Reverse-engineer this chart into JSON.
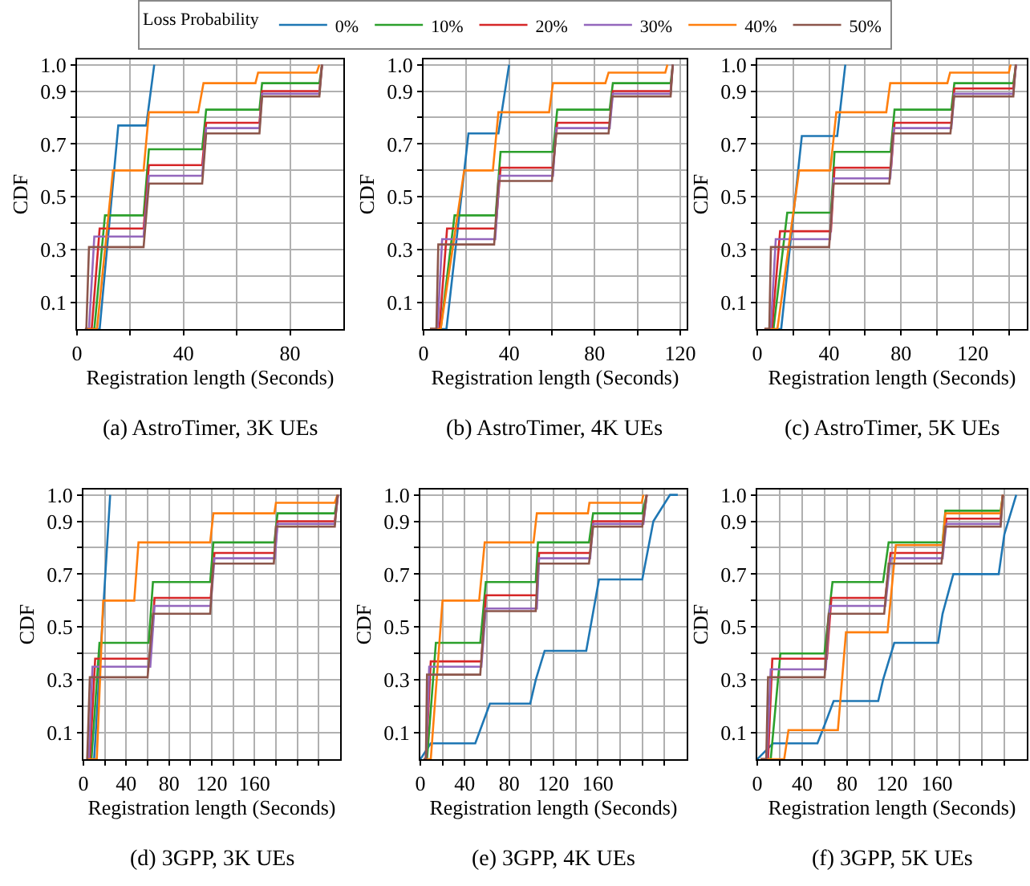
{
  "chart_data": [
    {
      "type": "line",
      "title": "(a) AstroTimer, 3K UEs",
      "xlabel": "Registration length (Seconds)",
      "ylabel": "CDF",
      "legend_title": "Loss Probability",
      "legend": "top",
      "grid": true,
      "xlim": [
        0,
        100
      ],
      "xticks": [
        0,
        {
          "value": 20,
          "label": null
        },
        40,
        {
          "value": 60,
          "label": null
        },
        80
      ],
      "ylim": [
        0,
        1.02
      ],
      "yticks": [
        0.1,
        {
          "value": 0.2,
          "label": null
        },
        0.3,
        {
          "value": 0.4,
          "label": null
        },
        0.5,
        {
          "value": 0.6,
          "label": null
        },
        0.7,
        {
          "value": 0.8,
          "label": null
        },
        0.9,
        {
          "value": 1,
          "label": "1.0"
        }
      ],
      "series": [
        {
          "name": "0%",
          "color": "#1f77b4",
          "x": [
            3,
            8.5,
            15.5,
            26,
            29
          ],
          "values": [
            0,
            0,
            0.77,
            0.77,
            1.0
          ]
        },
        {
          "name": "10%",
          "color": "#2ca02c",
          "x": [
            3,
            6.5,
            10.5,
            25,
            27,
            47,
            48.5,
            68.5,
            69.5,
            91,
            92
          ],
          "values": [
            0,
            0,
            0.43,
            0.43,
            0.68,
            0.68,
            0.83,
            0.83,
            0.93,
            0.93,
            1.0
          ]
        },
        {
          "name": "20%",
          "color": "#d62728",
          "x": [
            3,
            5.5,
            8.5,
            25,
            27,
            47,
            48.5,
            68.5,
            69.5,
            91,
            92
          ],
          "values": [
            0,
            0,
            0.38,
            0.38,
            0.62,
            0.62,
            0.78,
            0.78,
            0.9,
            0.9,
            1.0
          ]
        },
        {
          "name": "30%",
          "color": "#9467bd",
          "x": [
            3,
            4.5,
            6.5,
            25,
            27,
            47,
            48.5,
            68.5,
            69.5,
            91,
            92
          ],
          "values": [
            0,
            0,
            0.35,
            0.35,
            0.58,
            0.58,
            0.76,
            0.76,
            0.89,
            0.89,
            1.0
          ]
        },
        {
          "name": "40%",
          "color": "#ff7f0e",
          "x": [
            3,
            7.5,
            13.5,
            25,
            27,
            45.5,
            47.5,
            67,
            68,
            90,
            91
          ],
          "values": [
            0,
            0,
            0.6,
            0.6,
            0.82,
            0.82,
            0.93,
            0.93,
            0.97,
            0.97,
            1.0
          ]
        },
        {
          "name": "50%",
          "color": "#8c564b",
          "x": [
            3,
            3.5,
            4.5,
            25,
            27,
            47,
            48.5,
            68.5,
            69.5,
            91,
            92
          ],
          "values": [
            0,
            0,
            0.31,
            0.31,
            0.55,
            0.55,
            0.74,
            0.74,
            0.88,
            0.88,
            1.0
          ]
        }
      ]
    },
    {
      "type": "line",
      "title": "(b) AstroTimer, 4K UEs",
      "xlabel": "Registration length (Seconds)",
      "ylabel": "CDF",
      "grid": true,
      "xlim": [
        0,
        123
      ],
      "xticks": [
        0,
        {
          "value": 20,
          "label": null
        },
        40,
        {
          "value": 60,
          "label": null
        },
        80,
        {
          "value": 100,
          "label": null
        },
        120
      ],
      "ylim": [
        0,
        1.02
      ],
      "yticks": [
        0.1,
        {
          "value": 0.2,
          "label": null
        },
        0.3,
        {
          "value": 0.4,
          "label": null
        },
        0.5,
        {
          "value": 0.6,
          "label": null
        },
        0.7,
        {
          "value": 0.8,
          "label": null
        },
        0.9,
        {
          "value": 1,
          "label": "1.0"
        }
      ],
      "series": [
        {
          "color": "#1f77b4",
          "x": [
            3,
            10.7,
            21,
            35,
            40
          ],
          "values": [
            0,
            0,
            0.74,
            0.74,
            1.0
          ]
        },
        {
          "color": "#2ca02c",
          "x": [
            3,
            8,
            14.5,
            33.7,
            36,
            60.5,
            62.5,
            87,
            88.5,
            115.5,
            116.5
          ],
          "values": [
            0,
            0,
            0.43,
            0.43,
            0.67,
            0.67,
            0.83,
            0.83,
            0.93,
            0.93,
            1.0
          ]
        },
        {
          "color": "#d62728",
          "x": [
            3,
            7.4,
            11,
            33.7,
            36,
            60.5,
            62.5,
            87,
            88.5,
            115.5,
            116.5
          ],
          "values": [
            0,
            0,
            0.38,
            0.38,
            0.61,
            0.61,
            0.78,
            0.78,
            0.9,
            0.9,
            1.0
          ]
        },
        {
          "color": "#9467bd",
          "x": [
            3,
            6.5,
            8.7,
            33.5,
            35.5,
            60.5,
            62,
            87,
            88.5,
            115.5,
            116.5
          ],
          "values": [
            0,
            0,
            0.34,
            0.34,
            0.58,
            0.58,
            0.76,
            0.76,
            0.89,
            0.89,
            1.0
          ]
        },
        {
          "color": "#ff7f0e",
          "x": [
            3,
            8,
            19,
            32.4,
            35,
            58.7,
            60.5,
            85,
            86.5,
            113,
            114
          ],
          "values": [
            0,
            0,
            0.6,
            0.6,
            0.82,
            0.82,
            0.93,
            0.93,
            0.97,
            0.97,
            1.0
          ]
        },
        {
          "color": "#8c564b",
          "x": [
            3,
            6,
            6.9,
            33,
            35,
            60,
            62,
            86.5,
            88,
            115.5,
            116.5
          ],
          "values": [
            0,
            0,
            0.32,
            0.32,
            0.56,
            0.56,
            0.74,
            0.74,
            0.88,
            0.88,
            1.0
          ]
        }
      ]
    },
    {
      "type": "line",
      "title": "(c) AstroTimer, 5K UEs",
      "xlabel": "Registration length (Seconds)",
      "ylabel": "CDF",
      "grid": true,
      "xlim": [
        0,
        150
      ],
      "xticks": [
        0,
        {
          "value": 20,
          "label": null
        },
        40,
        {
          "value": 60,
          "label": null
        },
        80,
        {
          "value": 100,
          "label": null
        },
        120,
        {
          "value": 140,
          "label": null
        }
      ],
      "ylim": [
        0,
        1.02
      ],
      "yticks": [
        0.1,
        {
          "value": 0.2,
          "label": null
        },
        0.3,
        {
          "value": 0.4,
          "label": null
        },
        0.5,
        {
          "value": 0.6,
          "label": null
        },
        0.7,
        {
          "value": 0.8,
          "label": null
        },
        0.9,
        {
          "value": 1,
          "label": "1.0"
        }
      ],
      "series": [
        {
          "color": "#1f77b4",
          "x": [
            4,
            13.3,
            24.8,
            44.5,
            49
          ],
          "values": [
            0,
            0,
            0.73,
            0.73,
            1.0
          ]
        },
        {
          "color": "#2ca02c",
          "x": [
            4,
            9,
            16.7,
            41,
            43,
            74.2,
            76.4,
            108,
            109.7,
            142.5,
            144
          ],
          "values": [
            0,
            0,
            0.44,
            0.44,
            0.67,
            0.67,
            0.83,
            0.83,
            0.93,
            0.93,
            1.0
          ]
        },
        {
          "color": "#d62728",
          "x": [
            4,
            8.2,
            12.7,
            41,
            43,
            74.5,
            76.4,
            108,
            109.7,
            142.5,
            144
          ],
          "values": [
            0,
            0,
            0.37,
            0.37,
            0.61,
            0.61,
            0.78,
            0.78,
            0.91,
            0.91,
            1.0
          ]
        },
        {
          "color": "#9467bd",
          "x": [
            4,
            7.5,
            10.3,
            40.5,
            42.5,
            74,
            76,
            108,
            109.7,
            142.5,
            144
          ],
          "values": [
            0,
            0,
            0.34,
            0.34,
            0.57,
            0.57,
            0.76,
            0.76,
            0.89,
            0.89,
            1.0
          ]
        },
        {
          "color": "#ff7f0e",
          "x": [
            4,
            11.2,
            23.3,
            40.6,
            44,
            71.8,
            74,
            105.8,
            107.3,
            140,
            141
          ],
          "values": [
            0,
            0,
            0.6,
            0.6,
            0.82,
            0.82,
            0.93,
            0.93,
            0.97,
            0.97,
            1.0
          ]
        },
        {
          "color": "#8c564b",
          "x": [
            4,
            6.7,
            7.6,
            40,
            42.4,
            73.5,
            75.5,
            107.5,
            109.5,
            142.5,
            143.8
          ],
          "values": [
            0,
            0,
            0.31,
            0.31,
            0.55,
            0.55,
            0.74,
            0.74,
            0.88,
            0.88,
            1.0
          ]
        }
      ]
    },
    {
      "type": "line",
      "title": "(d) 3GPP, 3K UEs",
      "xlabel": "Registration length (Seconds)",
      "ylabel": "CDF",
      "grid": true,
      "xlim": [
        0,
        240
      ],
      "xticks": [
        0,
        {
          "value": 20,
          "label": null
        },
        40,
        {
          "value": 60,
          "label": null
        },
        80,
        {
          "value": 100,
          "label": null
        },
        120,
        {
          "value": 140,
          "label": null
        },
        160,
        {
          "value": 180,
          "label": null
        },
        {
          "value": 200,
          "label": null
        },
        {
          "value": 220,
          "label": null
        }
      ],
      "ylim": [
        0,
        1.02
      ],
      "yticks": [
        0.1,
        {
          "value": 0.2,
          "label": null
        },
        0.3,
        {
          "value": 0.4,
          "label": null
        },
        0.5,
        {
          "value": 0.6,
          "label": null
        },
        0.7,
        {
          "value": 0.8,
          "label": null
        },
        0.9,
        {
          "value": 1,
          "label": "1.0"
        }
      ],
      "series": [
        {
          "color": "#1f77b4",
          "x": [
            3,
            10,
            25
          ],
          "values": [
            0,
            0,
            1.0
          ]
        },
        {
          "color": "#2ca02c",
          "x": [
            3,
            7.5,
            15,
            61,
            65,
            118.5,
            121.5,
            178.5,
            181.5,
            235,
            238
          ],
          "values": [
            0,
            0,
            0.44,
            0.44,
            0.67,
            0.67,
            0.82,
            0.82,
            0.93,
            0.93,
            1.0
          ]
        },
        {
          "color": "#d62728",
          "x": [
            3,
            6,
            11,
            62.5,
            66.5,
            119,
            122.5,
            179,
            181.5,
            235,
            238
          ],
          "values": [
            0,
            0,
            0.38,
            0.38,
            0.61,
            0.61,
            0.78,
            0.78,
            0.9,
            0.9,
            1.0
          ]
        },
        {
          "color": "#9467bd",
          "x": [
            3,
            5,
            8.5,
            62.5,
            66.5,
            119,
            122.5,
            179,
            181.5,
            235,
            238
          ],
          "values": [
            0,
            0,
            0.35,
            0.35,
            0.58,
            0.58,
            0.76,
            0.76,
            0.89,
            0.89,
            1.0
          ]
        },
        {
          "color": "#ff7f0e",
          "x": [
            3,
            12.5,
            18.5,
            47.5,
            51.5,
            118.5,
            121.5,
            178.5,
            180,
            235,
            237.5
          ],
          "values": [
            0,
            0,
            0.6,
            0.6,
            0.82,
            0.82,
            0.93,
            0.93,
            0.97,
            0.97,
            1.0
          ]
        },
        {
          "color": "#8c564b",
          "x": [
            3,
            3.5,
            6,
            60,
            65,
            118.5,
            121.5,
            178,
            180,
            235,
            237.5
          ],
          "values": [
            0,
            0,
            0.31,
            0.31,
            0.55,
            0.55,
            0.74,
            0.74,
            0.88,
            0.88,
            1.0
          ]
        }
      ]
    },
    {
      "type": "line",
      "title": "(e) 3GPP, 4K UEs",
      "xlabel": "Registration length (Seconds)",
      "ylabel": "CDF",
      "grid": true,
      "xlim": [
        0,
        240
      ],
      "xticks": [
        0,
        {
          "value": 20,
          "label": null
        },
        40,
        {
          "value": 60,
          "label": null
        },
        80,
        {
          "value": 100,
          "label": null
        },
        120,
        {
          "value": 140,
          "label": null
        },
        160,
        {
          "value": 180,
          "label": null
        },
        {
          "value": 200,
          "label": null
        },
        {
          "value": 220,
          "label": null
        }
      ],
      "ylim": [
        0,
        1.02
      ],
      "yticks": [
        0.1,
        {
          "value": 0.2,
          "label": null
        },
        0.3,
        {
          "value": 0.4,
          "label": null
        },
        0.5,
        {
          "value": 0.6,
          "label": null
        },
        0.7,
        {
          "value": 0.8,
          "label": null
        },
        0.9,
        {
          "value": 1,
          "label": "1.0"
        }
      ],
      "series": [
        {
          "color": "#1f77b4",
          "x": [
            0,
            9.4,
            49.5,
            62.7,
            99,
            104,
            112,
            149.5,
            161,
            200,
            210,
            225,
            232
          ],
          "values": [
            0,
            0.06,
            0.06,
            0.21,
            0.21,
            0.3,
            0.41,
            0.41,
            0.68,
            0.68,
            0.9,
            1.0,
            1.0
          ]
        },
        {
          "color": "#2ca02c",
          "x": [
            3,
            6,
            14,
            54,
            59,
            104,
            106,
            152,
            155.7,
            200,
            204
          ],
          "values": [
            0,
            0,
            0.44,
            0.44,
            0.67,
            0.67,
            0.82,
            0.82,
            0.93,
            0.93,
            1.0
          ]
        },
        {
          "color": "#d62728",
          "x": [
            3,
            5,
            9.4,
            55,
            59,
            105,
            107,
            153,
            155.7,
            201,
            204
          ],
          "values": [
            0,
            0,
            0.37,
            0.37,
            0.62,
            0.62,
            0.78,
            0.78,
            0.9,
            0.9,
            1.0
          ]
        },
        {
          "color": "#9467bd",
          "x": [
            3,
            5,
            8,
            55,
            59,
            105,
            107,
            153,
            155.7,
            201,
            204
          ],
          "values": [
            0,
            0,
            0.35,
            0.35,
            0.57,
            0.57,
            0.76,
            0.76,
            0.89,
            0.89,
            1.0
          ]
        },
        {
          "color": "#ff7f0e",
          "x": [
            3,
            9.4,
            20,
            53,
            58,
            102,
            105,
            151,
            152.4,
            199.5,
            201
          ],
          "values": [
            0,
            0,
            0.6,
            0.6,
            0.82,
            0.82,
            0.93,
            0.93,
            0.97,
            0.97,
            1.0
          ]
        },
        {
          "color": "#8c564b",
          "x": [
            3,
            5,
            6,
            54,
            58,
            104,
            106,
            152,
            155.7,
            200,
            204
          ],
          "values": [
            0,
            0,
            0.32,
            0.32,
            0.56,
            0.56,
            0.74,
            0.74,
            0.88,
            0.88,
            1.0
          ]
        }
      ]
    },
    {
      "type": "line",
      "title": "(f) 3GPP, 5K UEs",
      "xlabel": "Registration length (Seconds)",
      "ylabel": "CDF",
      "grid": true,
      "xlim": [
        0,
        240
      ],
      "xticks": [
        0,
        {
          "value": 20,
          "label": null
        },
        40,
        {
          "value": 60,
          "label": null
        },
        80,
        {
          "value": 100,
          "label": null
        },
        120,
        {
          "value": 140,
          "label": null
        },
        160,
        {
          "value": 180,
          "label": null
        },
        {
          "value": 200,
          "label": null
        },
        {
          "value": 220,
          "label": null
        }
      ],
      "ylim": [
        0,
        1.02
      ],
      "yticks": [
        0.1,
        {
          "value": 0.2,
          "label": null
        },
        0.3,
        {
          "value": 0.4,
          "label": null
        },
        0.5,
        {
          "value": 0.6,
          "label": null
        },
        0.7,
        {
          "value": 0.8,
          "label": null
        },
        0.9,
        {
          "value": 1,
          "label": "1.0"
        }
      ],
      "series": [
        {
          "color": "#1f77b4",
          "x": [
            0,
            14,
            53.6,
            60,
            68,
            107.7,
            112,
            122,
            161,
            165,
            174.6,
            215,
            220,
            230.6
          ],
          "values": [
            0,
            0.06,
            0.06,
            0.13,
            0.22,
            0.22,
            0.3,
            0.44,
            0.44,
            0.55,
            0.7,
            0.7,
            0.85,
            1.0
          ]
        },
        {
          "color": "#2ca02c",
          "x": [
            3,
            12,
            20.6,
            59.8,
            67,
            112,
            117,
            165,
            167.5,
            216.7,
            218.7
          ],
          "values": [
            0,
            0,
            0.4,
            0.4,
            0.67,
            0.67,
            0.82,
            0.82,
            0.94,
            0.94,
            1.0
          ]
        },
        {
          "color": "#d62728",
          "x": [
            3,
            9.6,
            13.4,
            62,
            66,
            114,
            118.7,
            165,
            168.4,
            216.7,
            218.7
          ],
          "values": [
            0,
            0,
            0.38,
            0.38,
            0.61,
            0.61,
            0.78,
            0.78,
            0.91,
            0.91,
            1.0
          ]
        },
        {
          "color": "#9467bd",
          "x": [
            3,
            8.5,
            12,
            61,
            64.6,
            114,
            118.7,
            165,
            168.4,
            216.7,
            218.7
          ],
          "values": [
            0,
            0,
            0.34,
            0.34,
            0.58,
            0.58,
            0.76,
            0.76,
            0.89,
            0.89,
            1.0
          ]
        },
        {
          "color": "#ff7f0e",
          "x": [
            3,
            24,
            27.8,
            71.8,
            79,
            116,
            123.4,
            165,
            167.5,
            216.7,
            218.7
          ],
          "values": [
            0,
            0,
            0.11,
            0.11,
            0.48,
            0.48,
            0.81,
            0.81,
            0.93,
            0.93,
            1.0
          ]
        },
        {
          "color": "#8c564b",
          "x": [
            3,
            8,
            9.6,
            60,
            63.6,
            113,
            117,
            164,
            167.5,
            216.7,
            218.7
          ],
          "values": [
            0,
            0,
            0.31,
            0.31,
            0.55,
            0.55,
            0.74,
            0.74,
            0.88,
            0.88,
            1.0
          ]
        }
      ]
    }
  ]
}
